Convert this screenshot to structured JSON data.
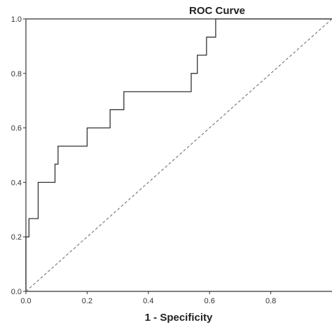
{
  "chart_data": {
    "type": "line",
    "title": "ROC Curve",
    "xlabel": "1 - Specificity",
    "ylabel": "",
    "xlim": [
      0,
      1
    ],
    "ylim": [
      0,
      1
    ],
    "x_ticks": [
      "0.0",
      "0.2",
      "0.4",
      "0.6",
      "0.8"
    ],
    "y_ticks": [
      "0.0",
      "0.2",
      "0.4",
      "0.6",
      "0.8",
      "1.0"
    ],
    "grid": false,
    "series": [
      {
        "step": true,
        "color": "#333333",
        "points": [
          [
            0.0,
            0.0
          ],
          [
            0.0,
            0.2
          ],
          [
            0.01,
            0.2
          ],
          [
            0.01,
            0.267
          ],
          [
            0.04,
            0.267
          ],
          [
            0.04,
            0.4
          ],
          [
            0.095,
            0.4
          ],
          [
            0.095,
            0.467
          ],
          [
            0.105,
            0.467
          ],
          [
            0.105,
            0.533
          ],
          [
            0.2,
            0.533
          ],
          [
            0.2,
            0.6
          ],
          [
            0.275,
            0.6
          ],
          [
            0.275,
            0.667
          ],
          [
            0.32,
            0.667
          ],
          [
            0.32,
            0.733
          ],
          [
            0.54,
            0.733
          ],
          [
            0.54,
            0.8
          ],
          [
            0.56,
            0.8
          ],
          [
            0.56,
            0.867
          ],
          [
            0.59,
            0.867
          ],
          [
            0.59,
            0.933
          ],
          [
            0.62,
            0.933
          ],
          [
            0.62,
            1.0
          ],
          [
            1.0,
            1.0
          ]
        ]
      },
      {
        "color": "#666666",
        "dashed": true,
        "points": [
          [
            0,
            0
          ],
          [
            1,
            1
          ]
        ]
      }
    ]
  }
}
